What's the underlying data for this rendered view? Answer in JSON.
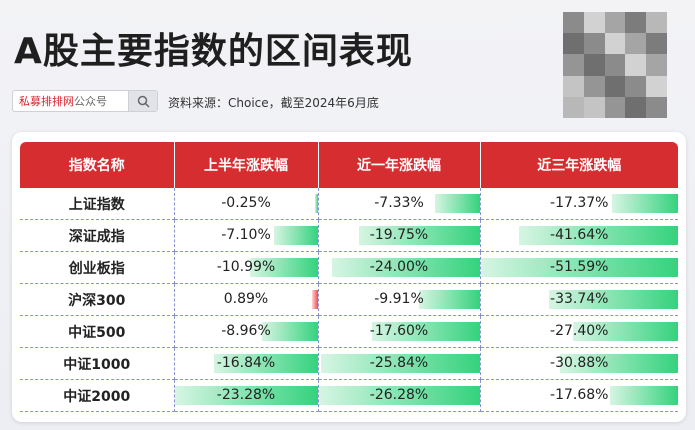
{
  "title": "A股主要指数的区间表现",
  "search": {
    "name_red": "私募排排网",
    "name_gray": "公众号"
  },
  "source": "资料来源：Choice，截至2024年6月底",
  "table": {
    "headers": [
      "指数名称",
      "上半年涨跌幅",
      "近一年涨跌幅",
      "近三年涨跌幅"
    ],
    "rows": [
      {
        "name": "上证指数",
        "h1": "-0.25%",
        "y1": "-7.33%",
        "y3": "-17.37%"
      },
      {
        "name": "深证成指",
        "h1": "-7.10%",
        "y1": "-19.75%",
        "y3": "-41.64%"
      },
      {
        "name": "创业板指",
        "h1": "-10.99%",
        "y1": "-24.00%",
        "y3": "-51.59%"
      },
      {
        "name": "沪深300",
        "h1": "0.89%",
        "y1": "-9.91%",
        "y3": "-33.74%"
      },
      {
        "name": "中证500",
        "h1": "-8.96%",
        "y1": "-17.60%",
        "y3": "-27.40%"
      },
      {
        "name": "中证1000",
        "h1": "-16.84%",
        "y1": "-25.84%",
        "y3": "-30.88%"
      },
      {
        "name": "中证2000",
        "h1": "-23.28%",
        "y1": "-26.28%",
        "y3": "-17.68%"
      }
    ]
  },
  "colors": {
    "header": "#d62e30",
    "negative_bar": "#35d27d",
    "positive_bar": "#ef4b4b"
  },
  "icons": {
    "search": "magnifier-icon",
    "qr": "qr-code-icon"
  }
}
